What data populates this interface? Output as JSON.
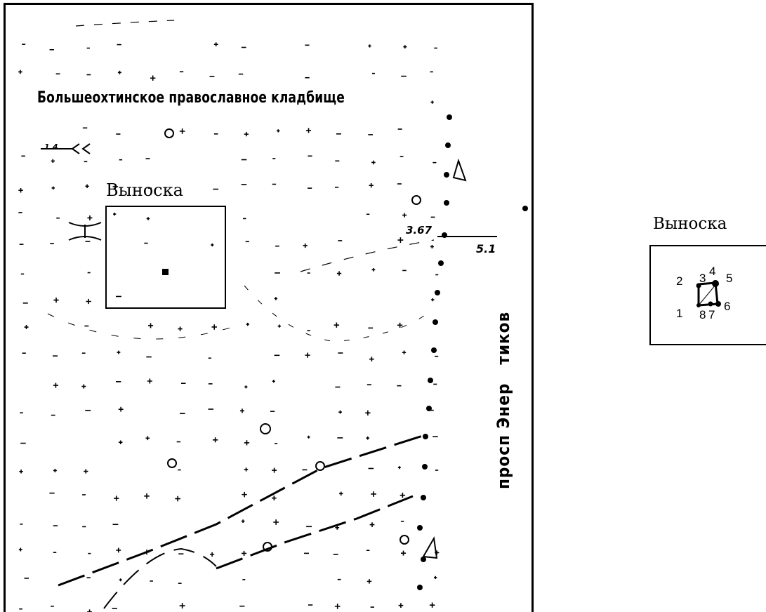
{
  "map": {
    "cemetery_name": "Большеохтинское православное кладбище",
    "callout_label": "Выноска",
    "street_name_part1": "просп Энер",
    "street_name_part2": "тиков",
    "height_label": "3.67",
    "height_value": "5.1",
    "contour_label": "1.4"
  },
  "callout_detail": {
    "label": "Выноска",
    "vertex_labels": [
      "1",
      "2",
      "3",
      "4",
      "5",
      "6",
      "7",
      "8"
    ]
  },
  "colors": {
    "ink": "#000000",
    "background": "#ffffff"
  }
}
